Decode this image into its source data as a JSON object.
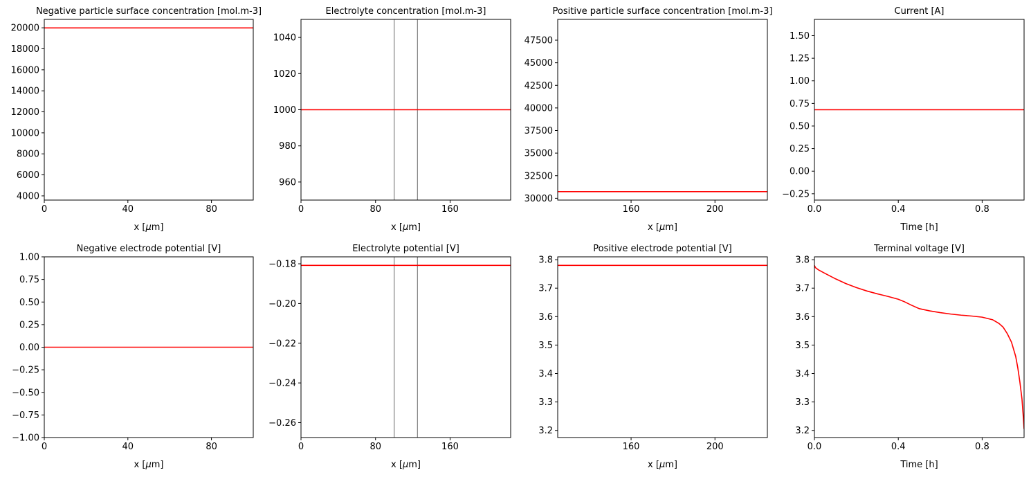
{
  "chart_data": [
    {
      "type": "line",
      "title": "Negative particle surface concentration [mol.m-3]",
      "xlabel": "x [$\\mu$m]",
      "xlim": [
        0,
        100
      ],
      "ylim": [
        3600,
        20800
      ],
      "xticks": [
        0,
        40,
        80
      ],
      "xtick_labels": [
        "0",
        "40",
        "80"
      ],
      "yticks": [
        4000,
        6000,
        8000,
        10000,
        12000,
        14000,
        16000,
        18000,
        20000
      ],
      "ytick_labels": [
        "4000",
        "6000",
        "8000",
        "10000",
        "12000",
        "14000",
        "16000",
        "18000",
        "20000"
      ],
      "vlines": [],
      "series": [
        {
          "color": "#ff0000",
          "x": [
            0,
            100
          ],
          "y": [
            19986,
            19986
          ]
        }
      ]
    },
    {
      "type": "line",
      "title": "Electrolyte concentration [mol.m-3]",
      "xlabel": "x [$\\mu$m]",
      "xlim": [
        0,
        225
      ],
      "ylim": [
        950,
        1050
      ],
      "xticks": [
        0,
        80,
        160
      ],
      "xtick_labels": [
        "0",
        "80",
        "160"
      ],
      "yticks": [
        960,
        980,
        1000,
        1020,
        1040
      ],
      "ytick_labels": [
        "960",
        "980",
        "1000",
        "1020",
        "1040"
      ],
      "vlines": [
        100,
        125
      ],
      "series": [
        {
          "color": "#ff0000",
          "x": [
            0,
            225
          ],
          "y": [
            1000,
            1000
          ]
        }
      ]
    },
    {
      "type": "line",
      "title": "Positive particle surface concentration [mol.m-3]",
      "xlabel": "x [$\\mu$m]",
      "xlim": [
        125,
        225
      ],
      "ylim": [
        29800,
        49800
      ],
      "xticks": [
        160,
        200
      ],
      "xtick_labels": [
        "160",
        "200"
      ],
      "yticks": [
        30000,
        32500,
        35000,
        37500,
        40000,
        42500,
        45000,
        47500
      ],
      "ytick_labels": [
        "30000",
        "32500",
        "35000",
        "37500",
        "40000",
        "42500",
        "45000",
        "47500"
      ],
      "vlines": [],
      "series": [
        {
          "color": "#ff0000",
          "x": [
            125,
            225
          ],
          "y": [
            30730,
            30730
          ]
        }
      ]
    },
    {
      "type": "line",
      "title": "Current [A]",
      "xlabel": "Time [h]",
      "xlim": [
        0,
        1.0
      ],
      "ylim": [
        -0.32,
        1.68
      ],
      "xticks": [
        0,
        0.4,
        0.8
      ],
      "xtick_labels": [
        "0.0",
        "0.4",
        "0.8"
      ],
      "yticks": [
        -0.25,
        0,
        0.25,
        0.5,
        0.75,
        1.0,
        1.25,
        1.5
      ],
      "ytick_labels": [
        "−0.25",
        "0.00",
        "0.25",
        "0.50",
        "0.75",
        "1.00",
        "1.25",
        "1.50"
      ],
      "vlines": [],
      "series": [
        {
          "color": "#ff0000",
          "x": [
            0,
            1.0
          ],
          "y": [
            0.68,
            0.68
          ]
        }
      ]
    },
    {
      "type": "line",
      "title": "Negative electrode potential [V]",
      "xlabel": "x [$\\mu$m]",
      "xlim": [
        0,
        100
      ],
      "ylim": [
        -1.0,
        1.0
      ],
      "xticks": [
        0,
        40,
        80
      ],
      "xtick_labels": [
        "0",
        "40",
        "80"
      ],
      "yticks": [
        -1.0,
        -0.75,
        -0.5,
        -0.25,
        0,
        0.25,
        0.5,
        0.75,
        1.0
      ],
      "ytick_labels": [
        "−1.00",
        "−0.75",
        "−0.50",
        "−0.25",
        "0.00",
        "0.25",
        "0.50",
        "0.75",
        "1.00"
      ],
      "vlines": [],
      "series": [
        {
          "color": "#ff0000",
          "x": [
            0,
            100
          ],
          "y": [
            0,
            0
          ]
        }
      ]
    },
    {
      "type": "line",
      "title": "Electrolyte potential [V]",
      "xlabel": "x [$\\mu$m]",
      "xlim": [
        0,
        225
      ],
      "ylim": [
        -0.2675,
        -0.1765
      ],
      "xticks": [
        0,
        80,
        160
      ],
      "xtick_labels": [
        "0",
        "80",
        "160"
      ],
      "yticks": [
        -0.26,
        -0.24,
        -0.22,
        -0.2,
        -0.18
      ],
      "ytick_labels": [
        "−0.26",
        "−0.24",
        "−0.22",
        "−0.20",
        "−0.18"
      ],
      "vlines": [
        100,
        125
      ],
      "series": [
        {
          "color": "#ff0000",
          "x": [
            0,
            225
          ],
          "y": [
            -0.1808,
            -0.1808
          ]
        }
      ]
    },
    {
      "type": "line",
      "title": "Positive electrode potential [V]",
      "xlabel": "x [$\\mu$m]",
      "xlim": [
        125,
        225
      ],
      "ylim": [
        3.175,
        3.81
      ],
      "xticks": [
        160,
        200
      ],
      "xtick_labels": [
        "160",
        "200"
      ],
      "yticks": [
        3.2,
        3.3,
        3.4,
        3.5,
        3.6,
        3.7,
        3.8
      ],
      "ytick_labels": [
        "3.2",
        "3.3",
        "3.4",
        "3.5",
        "3.6",
        "3.7",
        "3.8"
      ],
      "vlines": [],
      "series": [
        {
          "color": "#ff0000",
          "x": [
            125,
            225
          ],
          "y": [
            3.78,
            3.78
          ]
        }
      ]
    },
    {
      "type": "line",
      "title": "Terminal voltage [V]",
      "xlabel": "Time [h]",
      "xlim": [
        0,
        1.0
      ],
      "ylim": [
        3.175,
        3.81
      ],
      "xticks": [
        0,
        0.4,
        0.8
      ],
      "xtick_labels": [
        "0.0",
        "0.4",
        "0.8"
      ],
      "yticks": [
        3.2,
        3.3,
        3.4,
        3.5,
        3.6,
        3.7,
        3.8
      ],
      "ytick_labels": [
        "3.2",
        "3.3",
        "3.4",
        "3.5",
        "3.6",
        "3.7",
        "3.8"
      ],
      "vlines": [],
      "series": [
        {
          "color": "#ff0000",
          "x": [
            0,
            0.005,
            0.02,
            0.05,
            0.1,
            0.15,
            0.2,
            0.25,
            0.3,
            0.35,
            0.4,
            0.43,
            0.46,
            0.5,
            0.55,
            0.6,
            0.65,
            0.7,
            0.75,
            0.8,
            0.85,
            0.88,
            0.9,
            0.92,
            0.94,
            0.96,
            0.97,
            0.98,
            0.99,
            0.995,
            1.0
          ],
          "y": [
            3.78,
            3.772,
            3.764,
            3.752,
            3.733,
            3.716,
            3.702,
            3.69,
            3.68,
            3.671,
            3.661,
            3.652,
            3.641,
            3.628,
            3.62,
            3.614,
            3.609,
            3.605,
            3.602,
            3.598,
            3.589,
            3.576,
            3.563,
            3.54,
            3.51,
            3.46,
            3.42,
            3.37,
            3.31,
            3.26,
            3.205
          ]
        }
      ]
    }
  ]
}
